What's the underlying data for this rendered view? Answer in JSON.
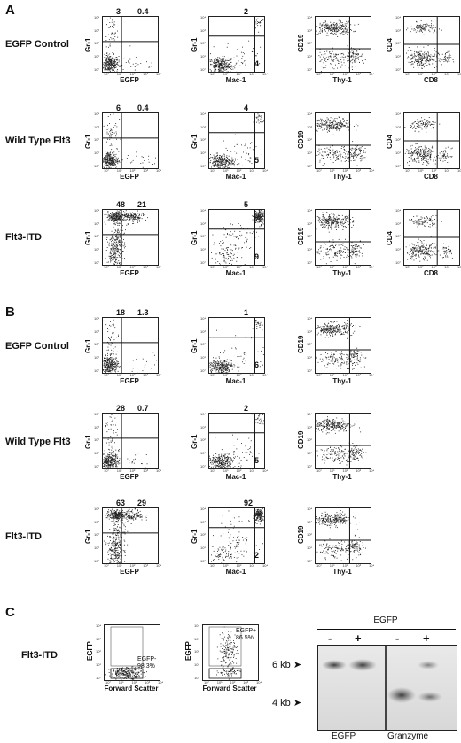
{
  "panels": {
    "A": {
      "letter": "A",
      "rows": [
        {
          "label": "EGFP Control",
          "plots": [
            {
              "x_label": "EGFP",
              "y_label": "Gr-1",
              "numbers": [
                "3",
                "0.4"
              ],
              "br": ""
            },
            {
              "x_label": "Mac-1",
              "y_label": "Gr-1",
              "numbers": [
                "",
                "2"
              ],
              "br": "4"
            },
            {
              "x_label": "Thy-1",
              "y_label": "CD19",
              "numbers": [],
              "br": ""
            },
            {
              "x_label": "CD8",
              "y_label": "CD4",
              "numbers": [],
              "br": ""
            }
          ]
        },
        {
          "label": "Wild Type Flt3",
          "plots": [
            {
              "x_label": "EGFP",
              "y_label": "Gr-1",
              "numbers": [
                "6",
                "0.4"
              ],
              "br": ""
            },
            {
              "x_label": "Mac-1",
              "y_label": "Gr-1",
              "numbers": [
                "",
                "4"
              ],
              "br": "5"
            },
            {
              "x_label": "Thy-1",
              "y_label": "CD19",
              "numbers": [],
              "br": ""
            },
            {
              "x_label": "CD8",
              "y_label": "CD4",
              "numbers": [],
              "br": ""
            }
          ]
        },
        {
          "label": "Flt3-ITD",
          "plots": [
            {
              "x_label": "EGFP",
              "y_label": "Gr-1",
              "numbers": [
                "48",
                "21"
              ],
              "br": ""
            },
            {
              "x_label": "Mac-1",
              "y_label": "Gr-1",
              "numbers": [
                "",
                "5"
              ],
              "br": "9"
            },
            {
              "x_label": "Thy-1",
              "y_label": "CD19",
              "numbers": [],
              "br": ""
            },
            {
              "x_label": "CD8",
              "y_label": "CD4",
              "numbers": [],
              "br": ""
            }
          ]
        }
      ]
    },
    "B": {
      "letter": "B",
      "rows": [
        {
          "label": "EGFP Control",
          "plots": [
            {
              "x_label": "EGFP",
              "y_label": "Gr-1",
              "numbers": [
                "18",
                "1.3"
              ],
              "br": ""
            },
            {
              "x_label": "Mac-1",
              "y_label": "Gr-1",
              "numbers": [
                "",
                "1"
              ],
              "br": "6"
            },
            {
              "x_label": "Thy-1",
              "y_label": "CD19",
              "numbers": [],
              "br": ""
            }
          ]
        },
        {
          "label": "Wild Type Flt3",
          "plots": [
            {
              "x_label": "EGFP",
              "y_label": "Gr-1",
              "numbers": [
                "28",
                "0.7"
              ],
              "br": ""
            },
            {
              "x_label": "Mac-1",
              "y_label": "Gr-1",
              "numbers": [
                "",
                "2"
              ],
              "br": "5"
            },
            {
              "x_label": "Thy-1",
              "y_label": "CD19",
              "numbers": [],
              "br": ""
            }
          ]
        },
        {
          "label": "Flt3-ITD",
          "plots": [
            {
              "x_label": "EGFP",
              "y_label": "Gr-1",
              "numbers": [
                "63",
                "29"
              ],
              "br": ""
            },
            {
              "x_label": "Mac-1",
              "y_label": "Gr-1",
              "numbers": [
                "",
                "92"
              ],
              "br": "2"
            },
            {
              "x_label": "Thy-1",
              "y_label": "CD19",
              "numbers": [],
              "br": ""
            }
          ]
        }
      ]
    },
    "C": {
      "letter": "C",
      "row_label": "Flt3-ITD",
      "plots": [
        {
          "x_label": "Forward Scatter",
          "y_label": "EGFP",
          "gate_label": "EGFP-",
          "gate_value": "98.3%"
        },
        {
          "x_label": "Forward Scatter",
          "y_label": "EGFP",
          "gate_label": "EGFP+",
          "gate_value": "86.5%"
        }
      ],
      "blot": {
        "header": "EGFP",
        "lanes": [
          "-",
          "+",
          "-",
          "+"
        ],
        "markers": [
          "6 kb",
          "4 kb"
        ],
        "probes": [
          "EGFP",
          "Granzyme"
        ]
      }
    }
  },
  "tick_labels": [
    "10°",
    "10¹",
    "10²",
    "10³",
    "10⁴"
  ]
}
